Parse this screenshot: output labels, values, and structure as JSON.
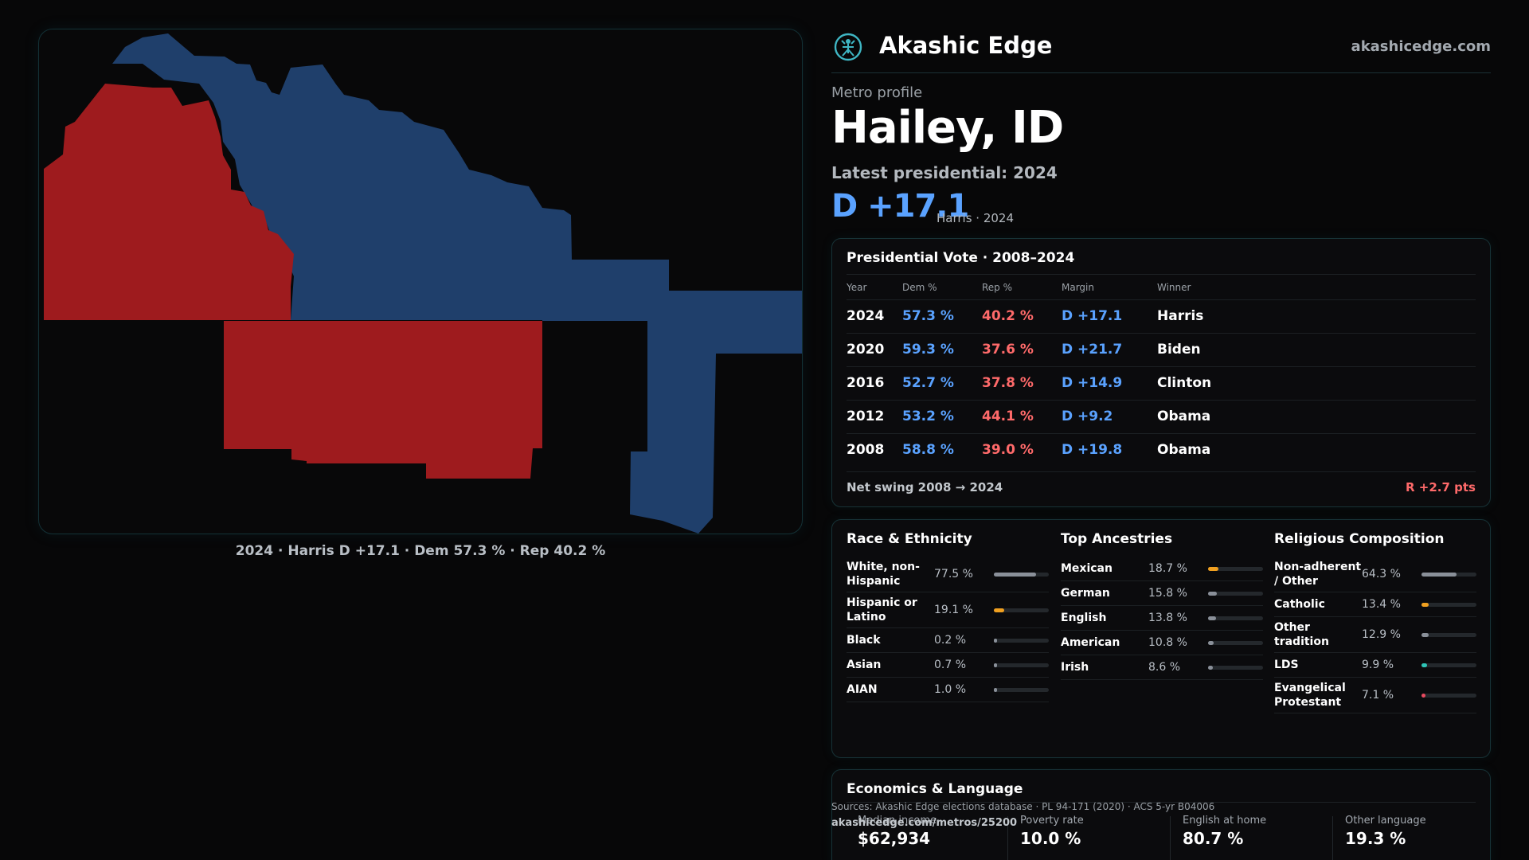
{
  "brand": {
    "name": "Akashic Edge",
    "url": "akashicedge.com"
  },
  "metro": {
    "kicker": "Metro profile",
    "title": "Hailey, ID",
    "latest_label": "Latest presidential: 2024",
    "margin": "D +17.1",
    "margin_sub": "Harris · 2024"
  },
  "map": {
    "caption": "2024 · Harris D +17.1 · Dem 57.3 % · Rep 40.2 %",
    "colors": {
      "dem": "#1f3f6b",
      "rep": "#9e1b1e"
    }
  },
  "vote_table": {
    "title": "Presidential Vote · 2008–2024",
    "headers": {
      "year": "Year",
      "dem": "Dem %",
      "rep": "Rep %",
      "margin": "Margin",
      "winner": "Winner"
    },
    "rows": [
      {
        "year": "2024",
        "dem": "57.3 %",
        "rep": "40.2 %",
        "margin": "D +17.1",
        "winner": "Harris"
      },
      {
        "year": "2020",
        "dem": "59.3 %",
        "rep": "37.6 %",
        "margin": "D +21.7",
        "winner": "Biden"
      },
      {
        "year": "2016",
        "dem": "52.7 %",
        "rep": "37.8 %",
        "margin": "D +14.9",
        "winner": "Clinton"
      },
      {
        "year": "2012",
        "dem": "53.2 %",
        "rep": "44.1 %",
        "margin": "D +9.2",
        "winner": "Obama"
      },
      {
        "year": "2008",
        "dem": "58.8 %",
        "rep": "39.0 %",
        "margin": "D +19.8",
        "winner": "Obama"
      }
    ],
    "swing_label": "Net swing 2008 → 2024",
    "swing_value": "R +2.7 pts"
  },
  "race": {
    "title": "Race & Ethnicity",
    "items": [
      {
        "label": "White, non-Hispanic",
        "pct": "77.5 %",
        "value": 0.775,
        "color": "#8a9099"
      },
      {
        "label": "Hispanic or Latino",
        "pct": "19.1 %",
        "value": 0.191,
        "color": "#f0a020"
      },
      {
        "label": "Black",
        "pct": "0.2 %",
        "value": 0.002,
        "color": "#8a9099"
      },
      {
        "label": "Asian",
        "pct": "0.7 %",
        "value": 0.007,
        "color": "#8a9099"
      },
      {
        "label": "AIAN",
        "pct": "1.0 %",
        "value": 0.01,
        "color": "#8a9099"
      }
    ]
  },
  "ancestries": {
    "title": "Top Ancestries",
    "items": [
      {
        "label": "Mexican",
        "pct": "18.7 %",
        "value": 0.187,
        "color": "#f0a020"
      },
      {
        "label": "German",
        "pct": "15.8 %",
        "value": 0.158,
        "color": "#8a9099"
      },
      {
        "label": "English",
        "pct": "13.8 %",
        "value": 0.138,
        "color": "#8a9099"
      },
      {
        "label": "American",
        "pct": "10.8 %",
        "value": 0.108,
        "color": "#8a9099"
      },
      {
        "label": "Irish",
        "pct": "8.6 %",
        "value": 0.086,
        "color": "#8a9099"
      }
    ]
  },
  "religion": {
    "title": "Religious Composition",
    "items": [
      {
        "label": "Non-adherent / Other",
        "pct": "64.3 %",
        "value": 0.643,
        "color": "#8a9099"
      },
      {
        "label": "Catholic",
        "pct": "13.4 %",
        "value": 0.134,
        "color": "#f0a020"
      },
      {
        "label": "Other tradition",
        "pct": "12.9 %",
        "value": 0.129,
        "color": "#8a9099"
      },
      {
        "label": "LDS",
        "pct": "9.9 %",
        "value": 0.099,
        "color": "#2ec4b6"
      },
      {
        "label": "Evangelical Protestant",
        "pct": "7.1 %",
        "value": 0.071,
        "color": "#e84a5f"
      }
    ]
  },
  "economics": {
    "title": "Economics & Language",
    "items": [
      {
        "label": "Median income",
        "value": "$62,934"
      },
      {
        "label": "Poverty rate",
        "value": "10.0 %"
      },
      {
        "label": "English at home",
        "value": "80.7 %"
      },
      {
        "label": "Other language",
        "value": "19.3 %"
      }
    ]
  },
  "footer": {
    "sources": "Sources: Akashic Edge elections database · PL 94-171 (2020) · ACS 5-yr B04006",
    "url": "akashicedge.com/metros/25200"
  }
}
